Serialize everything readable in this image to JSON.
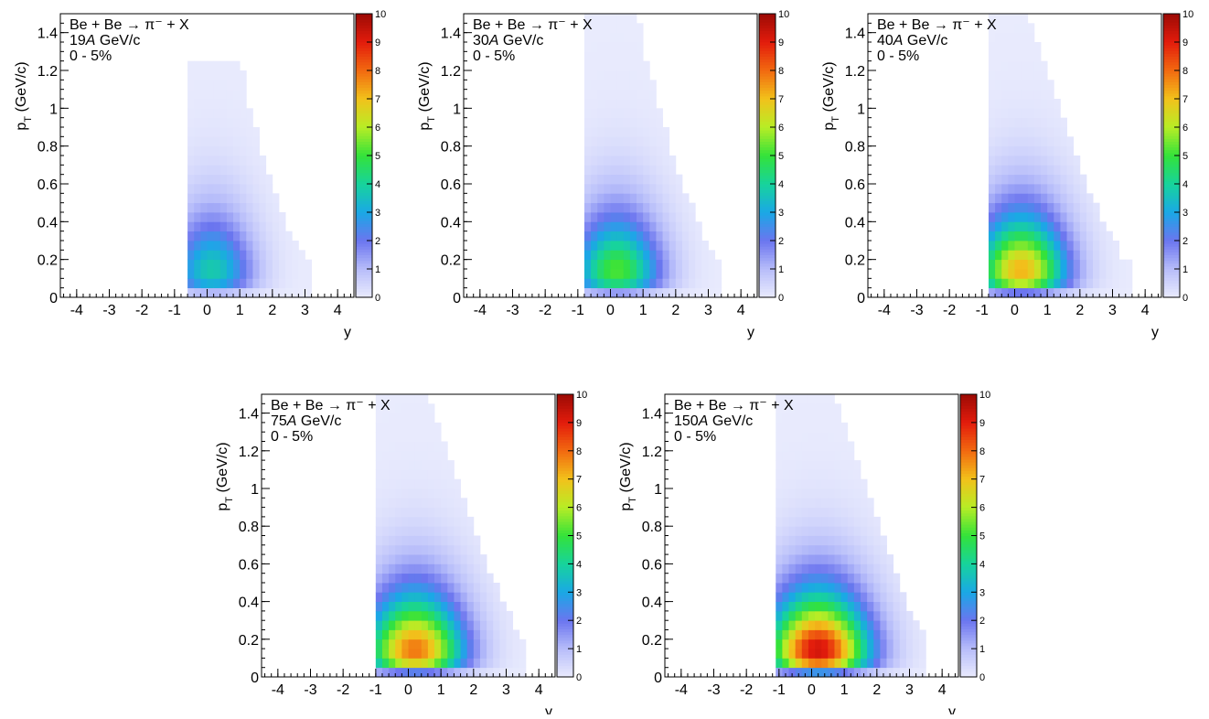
{
  "chart_data": [
    {
      "type": "heatmap",
      "title_lines": [
        "Be + Be → π⁻ + X",
        "19A GeV/c",
        "0 - 5%"
      ],
      "xlabel": "y",
      "ylabel": "p_T (GeV/c)",
      "xlim": [
        -4.5,
        4.5
      ],
      "ylim": [
        0,
        1.5
      ],
      "xticks": [
        "-4",
        "-3",
        "-2",
        "-1",
        "0",
        "1",
        "2",
        "3",
        "4"
      ],
      "yticks": [
        "0",
        "0.2",
        "0.4",
        "0.6",
        "0.8",
        "1",
        "1.2",
        "1.4"
      ],
      "zlim": [
        0,
        10
      ],
      "zticks": [
        "0",
        "1",
        "2",
        "3",
        "4",
        "5",
        "6",
        "7",
        "8",
        "9",
        "10"
      ],
      "y_range": [
        -0.6,
        3.3
      ],
      "y_peak": 0.15,
      "y_width": 1.25,
      "z_max": 3.8,
      "acceptance_ymin": -0.6,
      "acceptance_edge": [
        [
          -0.6,
          1.25
        ],
        [
          1.0,
          1.25
        ],
        [
          1.3,
          1.0
        ],
        [
          1.6,
          0.78
        ],
        [
          2.0,
          0.55
        ],
        [
          2.5,
          0.35
        ],
        [
          2.9,
          0.22
        ],
        [
          3.3,
          0.15
        ]
      ]
    },
    {
      "type": "heatmap",
      "title_lines": [
        "Be + Be → π⁻ + X",
        "30A GeV/c",
        "0 - 5%"
      ],
      "xlabel": "y",
      "ylabel": "p_T (GeV/c)",
      "xlim": [
        -4.5,
        4.5
      ],
      "ylim": [
        0,
        1.5
      ],
      "xticks": [
        "-4",
        "-3",
        "-2",
        "-1",
        "0",
        "1",
        "2",
        "3",
        "4"
      ],
      "yticks": [
        "0",
        "0.2",
        "0.4",
        "0.6",
        "0.8",
        "1",
        "1.2",
        "1.4"
      ],
      "zlim": [
        0,
        10
      ],
      "zticks": [
        "0",
        "1",
        "2",
        "3",
        "4",
        "5",
        "6",
        "7",
        "8",
        "9",
        "10"
      ],
      "y_range": [
        -0.8,
        3.4
      ],
      "y_peak": 0.2,
      "y_width": 1.35,
      "z_max": 5.2,
      "acceptance_ymin": -0.8,
      "acceptance_edge": [
        [
          -0.8,
          1.5
        ],
        [
          0.8,
          1.5
        ],
        [
          1.1,
          1.25
        ],
        [
          1.5,
          1.0
        ],
        [
          1.9,
          0.75
        ],
        [
          2.4,
          0.5
        ],
        [
          2.9,
          0.3
        ],
        [
          3.4,
          0.15
        ]
      ]
    },
    {
      "type": "heatmap",
      "title_lines": [
        "Be + Be → π⁻ + X",
        "40A GeV/c",
        "0 - 5%"
      ],
      "xlabel": "y",
      "ylabel": "p_T (GeV/c)",
      "xlim": [
        -4.5,
        4.5
      ],
      "ylim": [
        0,
        1.5
      ],
      "xticks": [
        "-4",
        "-3",
        "-2",
        "-1",
        "0",
        "1",
        "2",
        "3",
        "4"
      ],
      "yticks": [
        "0",
        "0.2",
        "0.4",
        "0.6",
        "0.8",
        "1",
        "1.2",
        "1.4"
      ],
      "zlim": [
        0,
        10
      ],
      "zticks": [
        "0",
        "1",
        "2",
        "3",
        "4",
        "5",
        "6",
        "7",
        "8",
        "9",
        "10"
      ],
      "y_range": [
        -0.8,
        3.6
      ],
      "y_peak": 0.2,
      "y_width": 1.4,
      "z_max": 7.2,
      "acceptance_ymin": -0.8,
      "acceptance_edge": [
        [
          -0.8,
          1.5
        ],
        [
          0.4,
          1.5
        ],
        [
          0.8,
          1.3
        ],
        [
          1.3,
          1.05
        ],
        [
          1.8,
          0.8
        ],
        [
          2.3,
          0.55
        ],
        [
          2.8,
          0.35
        ],
        [
          3.3,
          0.2
        ],
        [
          3.6,
          0.15
        ]
      ]
    },
    {
      "type": "heatmap",
      "title_lines": [
        "Be + Be → π⁻ + X",
        "75A GeV/c",
        "0 - 5%"
      ],
      "xlabel": "y",
      "ylabel": "p_T (GeV/c)",
      "xlim": [
        -4.5,
        4.5
      ],
      "ylim": [
        0,
        1.5
      ],
      "xticks": [
        "-4",
        "-3",
        "-2",
        "-1",
        "0",
        "1",
        "2",
        "3",
        "4"
      ],
      "yticks": [
        "0",
        "0.2",
        "0.4",
        "0.6",
        "0.8",
        "1",
        "1.2",
        "1.4"
      ],
      "zlim": [
        0,
        10
      ],
      "zticks": [
        "0",
        "1",
        "2",
        "3",
        "4",
        "5",
        "6",
        "7",
        "8",
        "9",
        "10"
      ],
      "y_range": [
        -1.0,
        3.7
      ],
      "y_peak": 0.2,
      "y_width": 1.5,
      "z_max": 7.9,
      "acceptance_ymin": -1.0,
      "acceptance_edge": [
        [
          -1.0,
          1.5
        ],
        [
          0.6,
          1.5
        ],
        [
          1.0,
          1.3
        ],
        [
          1.5,
          1.05
        ],
        [
          2.0,
          0.8
        ],
        [
          2.5,
          0.55
        ],
        [
          3.0,
          0.35
        ],
        [
          3.4,
          0.2
        ],
        [
          3.7,
          0.15
        ]
      ]
    },
    {
      "type": "heatmap",
      "title_lines": [
        "Be + Be → π⁻ + X",
        "150A GeV/c",
        "0 - 5%"
      ],
      "xlabel": "y",
      "ylabel": "p_T (GeV/c)",
      "xlim": [
        -4.5,
        4.5
      ],
      "ylim": [
        0,
        1.5
      ],
      "xticks": [
        "-4",
        "-3",
        "-2",
        "-1",
        "0",
        "1",
        "2",
        "3",
        "4"
      ],
      "yticks": [
        "0",
        "0.2",
        "0.4",
        "0.6",
        "0.8",
        "1",
        "1.2",
        "1.4"
      ],
      "zlim": [
        0,
        10
      ],
      "zticks": [
        "0",
        "1",
        "2",
        "3",
        "4",
        "5",
        "6",
        "7",
        "8",
        "9",
        "10"
      ],
      "y_range": [
        -1.1,
        3.6
      ],
      "y_peak": 0.2,
      "y_width": 1.55,
      "z_max": 9.3,
      "acceptance_ymin": -1.1,
      "acceptance_edge": [
        [
          -1.1,
          1.5
        ],
        [
          0.7,
          1.5
        ],
        [
          1.2,
          1.25
        ],
        [
          1.7,
          1.0
        ],
        [
          2.2,
          0.75
        ],
        [
          2.7,
          0.5
        ],
        [
          3.1,
          0.3
        ],
        [
          3.6,
          0.15
        ]
      ]
    }
  ],
  "colors": {
    "palette": [
      "#e9ebfd",
      "#b7bdfa",
      "#6b75ef",
      "#1aa8e6",
      "#17d39c",
      "#33e23a",
      "#b7ed26",
      "#f2c21b",
      "#f26a10",
      "#e31c0c",
      "#9c0a05"
    ],
    "axis": "#000000",
    "frame_bg": "#ffffff"
  }
}
